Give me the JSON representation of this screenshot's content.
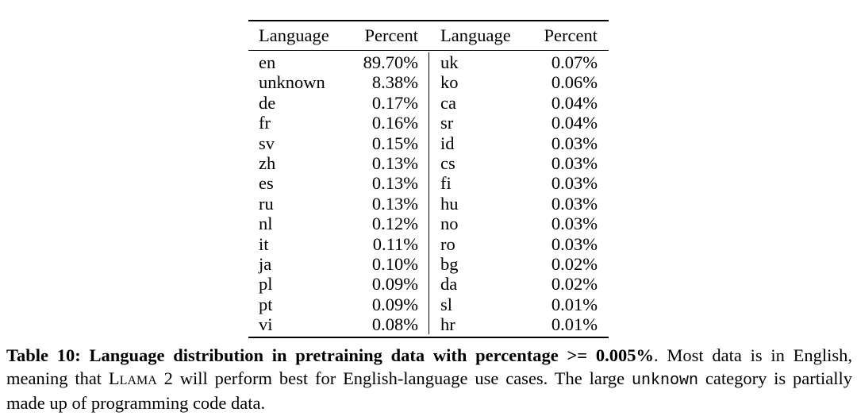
{
  "table": {
    "headers": [
      "Language",
      "Percent",
      "Language",
      "Percent"
    ],
    "rows": [
      [
        "en",
        "89.70%",
        "uk",
        "0.07%"
      ],
      [
        "unknown",
        "8.38%",
        "ko",
        "0.06%"
      ],
      [
        "de",
        "0.17%",
        "ca",
        "0.04%"
      ],
      [
        "fr",
        "0.16%",
        "sr",
        "0.04%"
      ],
      [
        "sv",
        "0.15%",
        "id",
        "0.03%"
      ],
      [
        "zh",
        "0.13%",
        "cs",
        "0.03%"
      ],
      [
        "es",
        "0.13%",
        "fi",
        "0.03%"
      ],
      [
        "ru",
        "0.13%",
        "hu",
        "0.03%"
      ],
      [
        "nl",
        "0.12%",
        "no",
        "0.03%"
      ],
      [
        "it",
        "0.11%",
        "ro",
        "0.03%"
      ],
      [
        "ja",
        "0.10%",
        "bg",
        "0.02%"
      ],
      [
        "pl",
        "0.09%",
        "da",
        "0.02%"
      ],
      [
        "pt",
        "0.09%",
        "sl",
        "0.01%"
      ],
      [
        "vi",
        "0.08%",
        "hr",
        "0.01%"
      ]
    ]
  },
  "caption": {
    "bold_label": "Table 10: Language distribution in pretraining data with percentage >= 0.005%",
    "segment_1": ". Most data is in English, meaning that ",
    "llama_smallcaps": "Llama 2",
    "segment_2": " will perform best for English-language use cases. The large ",
    "code_word": "unknown",
    "segment_3": " category is partially made up of programming code data."
  },
  "colors": {
    "text": "#000000",
    "background": "#ffffff",
    "rule": "#000000"
  }
}
